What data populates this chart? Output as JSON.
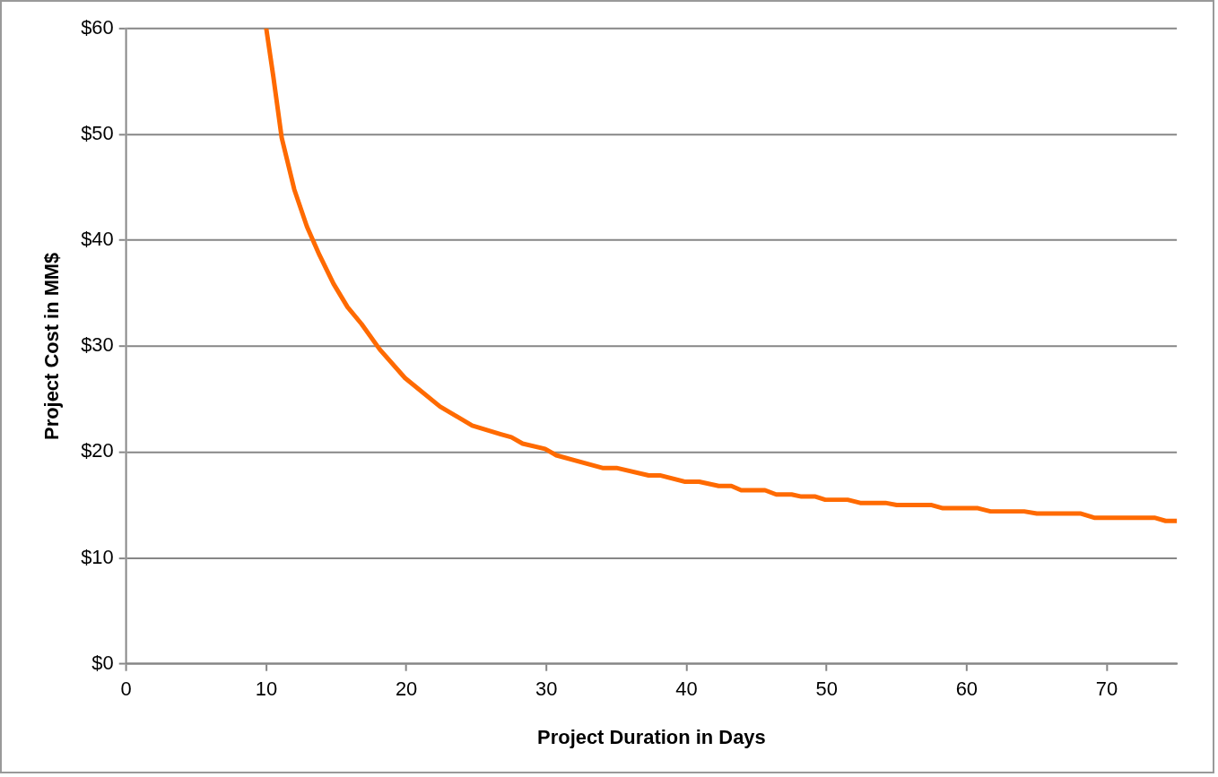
{
  "chart_data": {
    "type": "line",
    "xlabel": "Project Duration in Days",
    "ylabel": "Project Cost in MM$",
    "xlim": [
      0,
      75
    ],
    "xticks": [
      0,
      10,
      20,
      30,
      40,
      50,
      60,
      70
    ],
    "ylim": [
      0,
      60
    ],
    "yticks": [
      {
        "value": 0,
        "label": "$0"
      },
      {
        "value": 10,
        "label": "$10"
      },
      {
        "value": 20,
        "label": "$20"
      },
      {
        "value": 30,
        "label": "$30"
      },
      {
        "value": 40,
        "label": "$40"
      },
      {
        "value": 50,
        "label": "$50"
      },
      {
        "value": 60,
        "label": "$60"
      }
    ],
    "grid": "y",
    "legend": false,
    "marker": "none",
    "line_style": "solid",
    "series": [
      {
        "color": "#ff6a00",
        "x": [
          10,
          10.5,
          11.1,
          12,
          12.9,
          13.8,
          14.8,
          15.8,
          16.8,
          18.1,
          19.9,
          22.4,
          24.7,
          26.7,
          27.5,
          28.3,
          29.9,
          30.7,
          34,
          35,
          37.3,
          38.1,
          39.9,
          40.9,
          42.3,
          43.2,
          43.9,
          45.6,
          46.4,
          47.5,
          48.2,
          49.2,
          49.9,
          51.5,
          52.4,
          54.2,
          55,
          57.5,
          58.3,
          60.8,
          61.7,
          64.1,
          65,
          68.1,
          69.1,
          73.4,
          74.2,
          75
        ],
        "values": [
          60,
          55.5,
          49.7,
          44.8,
          41.3,
          38.6,
          35.9,
          33.7,
          32.1,
          29.7,
          27,
          24.3,
          22.5,
          21.7,
          21.4,
          20.8,
          20.3,
          19.7,
          18.5,
          18.5,
          17.8,
          17.8,
          17.2,
          17.2,
          16.8,
          16.8,
          16.4,
          16.4,
          16,
          16,
          15.8,
          15.8,
          15.5,
          15.5,
          15.2,
          15.2,
          15,
          15,
          14.7,
          14.7,
          14.4,
          14.4,
          14.2,
          14.2,
          13.8,
          13.8,
          13.5,
          13.5
        ]
      }
    ]
  }
}
